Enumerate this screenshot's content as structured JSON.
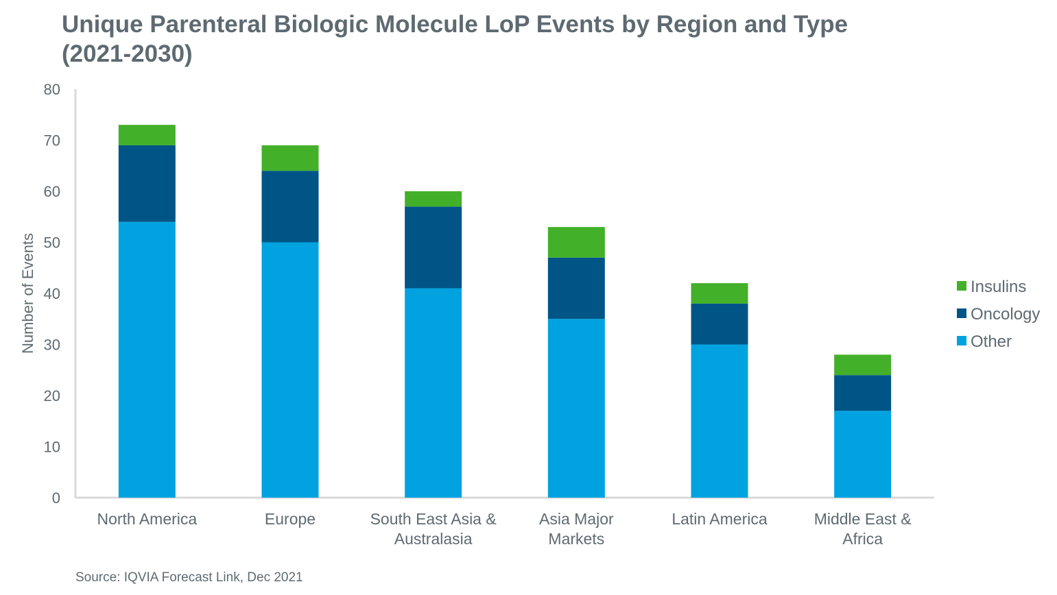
{
  "chart_data": {
    "type": "bar",
    "stacked": true,
    "title": "Unique Parenteral Biologic Molecule LoP Events by Region and Type (2021-2030)",
    "ylabel": "Number of Events",
    "xlabel": "",
    "ylim": [
      0,
      80
    ],
    "yticks": [
      0,
      10,
      20,
      30,
      40,
      50,
      60,
      70,
      80
    ],
    "grid": false,
    "legend_position": "right",
    "categories": [
      [
        "North America"
      ],
      [
        "Europe"
      ],
      [
        "South East Asia &",
        "Australasia"
      ],
      [
        "Asia Major",
        "Markets"
      ],
      [
        "Latin America"
      ],
      [
        "Middle East &",
        "Africa"
      ]
    ],
    "series": [
      {
        "name": "Other",
        "color": "#00a3e0",
        "values": [
          54,
          50,
          41,
          35,
          30,
          17
        ]
      },
      {
        "name": "Oncology",
        "color": "#005587",
        "values": [
          15,
          14,
          16,
          12,
          8,
          7
        ]
      },
      {
        "name": "Insulins",
        "color": "#43b02a",
        "values": [
          4,
          5,
          3,
          6,
          4,
          4
        ]
      }
    ],
    "source": "Source: IQVIA Forecast Link, Dec 2021"
  }
}
